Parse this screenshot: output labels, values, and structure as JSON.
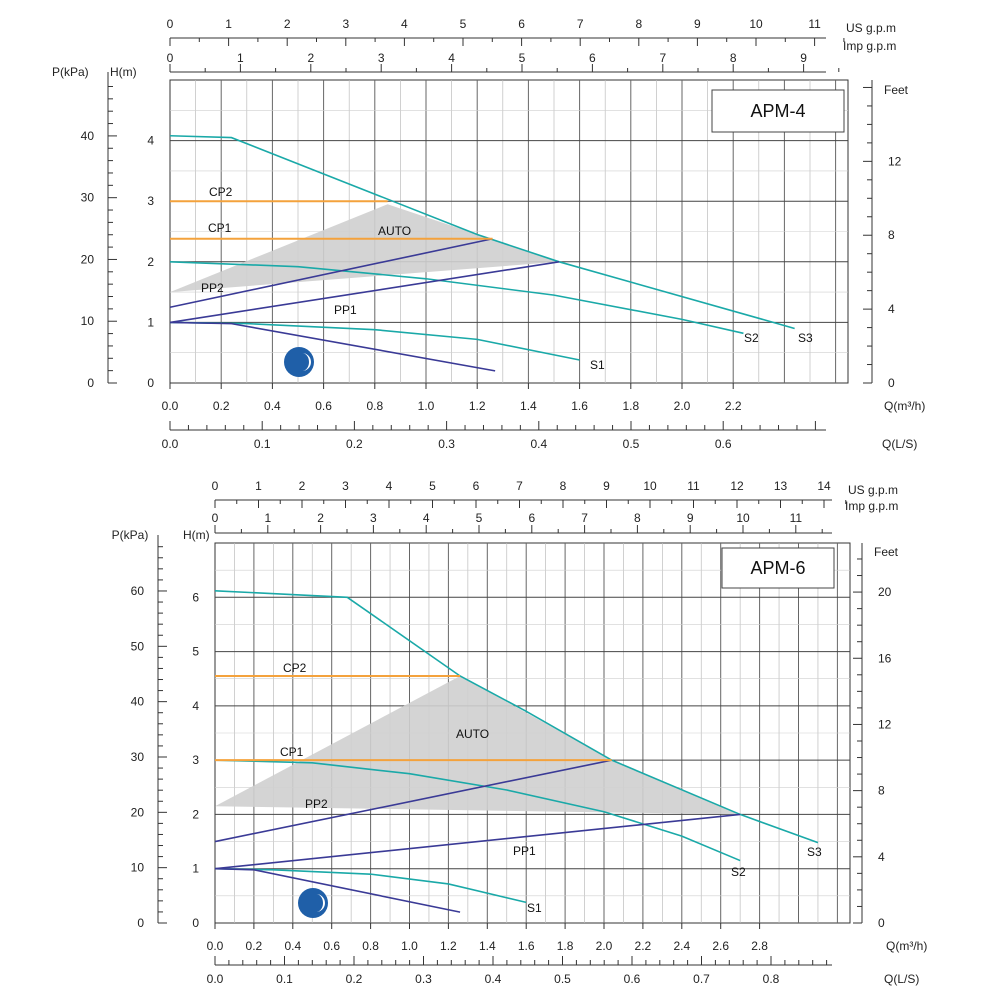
{
  "colors": {
    "teal": "#1aa9a8",
    "navy": "#3a3a96",
    "orange": "#f4a23c",
    "auto_fill": "#cfcfcf",
    "moon": "#1f5fa8",
    "grid": "#9a9a9a"
  },
  "chart_data": [
    {
      "type": "line",
      "title": "APM-4",
      "xlabel": "Q(m³/h)",
      "ylabel_left_p": "P(kPa)",
      "ylabel_left_h": "H(m)",
      "ylabel_right": "Feet",
      "xlim": [
        0,
        2.5
      ],
      "ylim": [
        0,
        5
      ],
      "grid": true,
      "x_ticks": [
        "0.0",
        "0.2",
        "0.4",
        "0.6",
        "0.8",
        "1.0",
        "1.2",
        "1.4",
        "1.6",
        "1.8",
        "2.0",
        "2.2"
      ],
      "h_ticks": [
        "0",
        "1",
        "2",
        "3",
        "4"
      ],
      "p_ticks": [
        "0",
        "10",
        "20",
        "30",
        "40"
      ],
      "feet_label": "Feet",
      "feet_ticks": [
        "0",
        "4",
        "8",
        "12"
      ],
      "ls_label": "Q(L/S)",
      "ls_ticks": [
        "0.0",
        "0.1",
        "0.2",
        "0.3",
        "0.4",
        "0.5",
        "0.6"
      ],
      "us_label": "US  g.p.m",
      "us_ticks": [
        "0",
        "1",
        "2",
        "3",
        "4",
        "5",
        "6",
        "7",
        "8",
        "9",
        "10",
        "11"
      ],
      "imp_label": "Imp  g.p.m",
      "imp_ticks": [
        "0",
        "1",
        "2",
        "3",
        "4",
        "5",
        "6",
        "7",
        "8",
        "9"
      ],
      "auto_label": "AUTO",
      "auto_region": [
        [
          0.0,
          1.5
        ],
        [
          0.85,
          2.95
        ],
        [
          1.52,
          2.0
        ]
      ],
      "series": [
        {
          "name": "S3",
          "kind": "teal",
          "points": [
            [
              0,
              4.08
            ],
            [
              0.24,
              4.05
            ],
            [
              1.2,
              2.45
            ],
            [
              1.52,
              2.0
            ],
            [
              2.44,
              0.9
            ]
          ]
        },
        {
          "name": "S2",
          "kind": "teal",
          "points": [
            [
              0,
              2.0
            ],
            [
              0.5,
              1.92
            ],
            [
              1.0,
              1.72
            ],
            [
              1.5,
              1.45
            ],
            [
              2.0,
              1.05
            ],
            [
              2.24,
              0.82
            ]
          ]
        },
        {
          "name": "S1",
          "kind": "teal",
          "points": [
            [
              0,
              1.0
            ],
            [
              0.3,
              0.98
            ],
            [
              0.8,
              0.88
            ],
            [
              1.2,
              0.72
            ],
            [
              1.6,
              0.38
            ]
          ]
        },
        {
          "name": "PP2",
          "kind": "navy",
          "points": [
            [
              0,
              1.25
            ],
            [
              1.26,
              2.38
            ]
          ]
        },
        {
          "name": "PP1",
          "kind": "navy",
          "points": [
            [
              0,
              1.0
            ],
            [
              1.52,
              2.0
            ]
          ]
        },
        {
          "name": "",
          "kind": "navy",
          "points": [
            [
              0,
              1.0
            ],
            [
              0.24,
              0.98
            ],
            [
              1.27,
              0.2
            ]
          ]
        },
        {
          "name": "CP2",
          "kind": "orange",
          "points": [
            [
              0,
              3.0
            ],
            [
              0.85,
              3.0
            ]
          ]
        },
        {
          "name": "CP1",
          "kind": "orange",
          "points": [
            [
              0,
              2.38
            ],
            [
              1.26,
              2.38
            ]
          ]
        }
      ]
    },
    {
      "type": "line",
      "title": "APM-6",
      "xlabel": "Q(m³/h)",
      "ylabel_left_p": "P(kPa)",
      "ylabel_left_h": "H(m)",
      "ylabel_right": "Feet",
      "xlim": [
        0,
        3.1
      ],
      "ylim": [
        0,
        7
      ],
      "grid": true,
      "x_ticks": [
        "0.0",
        "0.2",
        "0.4",
        "0.6",
        "0.8",
        "1.0",
        "1.2",
        "1.4",
        "1.6",
        "1.8",
        "2.0",
        "2.2",
        "2.4",
        "2.6",
        "2.8"
      ],
      "h_ticks": [
        "0",
        "1",
        "2",
        "3",
        "4",
        "5",
        "6"
      ],
      "p_ticks": [
        "0",
        "10",
        "20",
        "30",
        "40",
        "50",
        "60"
      ],
      "feet_label": "Feet",
      "feet_ticks": [
        "0",
        "4",
        "8",
        "12",
        "16",
        "20"
      ],
      "ls_label": "Q(L/S)",
      "ls_ticks": [
        "0.0",
        "0.1",
        "0.2",
        "0.3",
        "0.4",
        "0.5",
        "0.6",
        "0.7",
        "0.8"
      ],
      "us_label": "US  g.p.m",
      "us_ticks": [
        "0",
        "1",
        "2",
        "3",
        "4",
        "5",
        "6",
        "7",
        "8",
        "9",
        "10",
        "11",
        "12",
        "13",
        "14"
      ],
      "imp_label": "Imp  g.p.m",
      "imp_ticks": [
        "0",
        "1",
        "2",
        "3",
        "4",
        "5",
        "6",
        "7",
        "8",
        "9",
        "10",
        "11"
      ],
      "auto_label": "AUTO",
      "auto_region": [
        [
          0.0,
          2.15
        ],
        [
          1.26,
          4.55
        ],
        [
          2.04,
          3.0
        ],
        [
          2.7,
          2.0
        ]
      ],
      "series": [
        {
          "name": "S3",
          "kind": "teal",
          "points": [
            [
              0,
              6.12
            ],
            [
              0.68,
              6.0
            ],
            [
              1.26,
              4.55
            ],
            [
              1.6,
              3.9
            ],
            [
              2.04,
              3.0
            ],
            [
              2.7,
              2.0
            ],
            [
              3.1,
              1.48
            ]
          ]
        },
        {
          "name": "S2",
          "kind": "teal",
          "points": [
            [
              0,
              3.0
            ],
            [
              0.5,
              2.95
            ],
            [
              1.0,
              2.75
            ],
            [
              1.5,
              2.45
            ],
            [
              2.0,
              2.05
            ],
            [
              2.4,
              1.6
            ],
            [
              2.7,
              1.15
            ]
          ]
        },
        {
          "name": "S1",
          "kind": "teal",
          "points": [
            [
              0,
              1.0
            ],
            [
              0.3,
              0.98
            ],
            [
              0.8,
              0.9
            ],
            [
              1.2,
              0.72
            ],
            [
              1.6,
              0.38
            ]
          ]
        },
        {
          "name": "PP2",
          "kind": "navy",
          "points": [
            [
              0,
              1.5
            ],
            [
              2.04,
              3.0
            ]
          ]
        },
        {
          "name": "PP1",
          "kind": "navy",
          "points": [
            [
              0,
              1.0
            ],
            [
              2.7,
              2.0
            ]
          ]
        },
        {
          "name": "",
          "kind": "navy",
          "points": [
            [
              0,
              1.0
            ],
            [
              0.2,
              0.98
            ],
            [
              1.26,
              0.2
            ]
          ]
        },
        {
          "name": "CP2",
          "kind": "orange",
          "points": [
            [
              0,
              4.55
            ],
            [
              1.26,
              4.55
            ]
          ]
        },
        {
          "name": "CP1",
          "kind": "orange",
          "points": [
            [
              0,
              3.0
            ],
            [
              2.04,
              3.0
            ]
          ]
        }
      ]
    }
  ]
}
